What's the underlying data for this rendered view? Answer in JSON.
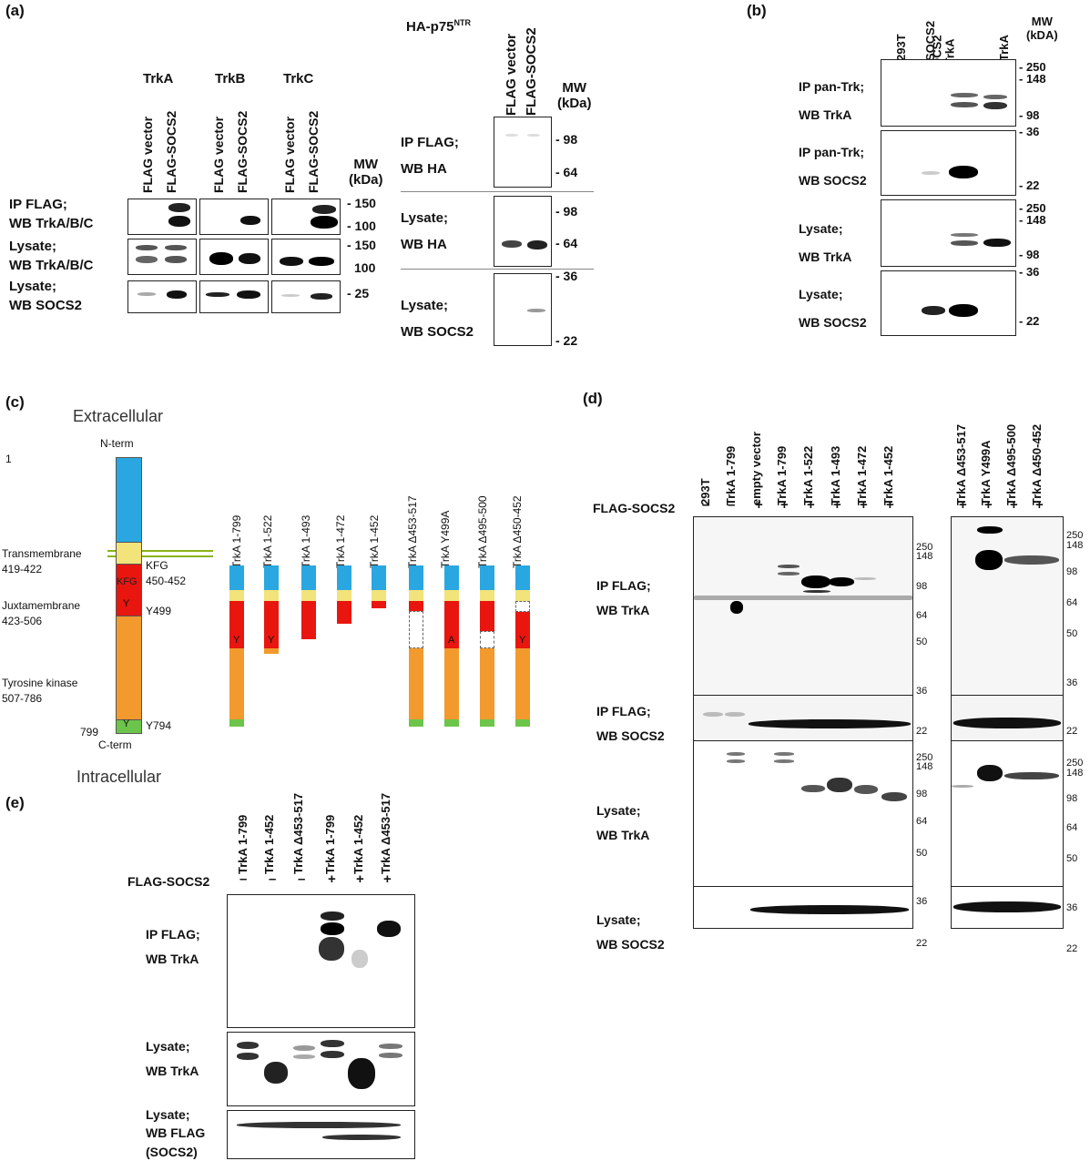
{
  "panels": {
    "a": "(a)",
    "b": "(b)",
    "c": "(c)",
    "d": "(d)",
    "e": "(e)"
  },
  "a": {
    "receptors": [
      "TrkA",
      "TrkB",
      "TrkC"
    ],
    "lanes": [
      "FLAG vector",
      "FLAG-SOCS2"
    ],
    "mw_title": "MW\n(kDa)",
    "rows": [
      {
        "l1": "IP FLAG;",
        "l2": "WB TrkA/B/C",
        "mw": [
          "- 150",
          "- 100"
        ]
      },
      {
        "l1": "Lysate;",
        "l2": "WB TrkA/B/C",
        "mw": [
          "- 150",
          "100"
        ]
      },
      {
        "l1": "Lysate;",
        "l2": "WB SOCS2",
        "mw": [
          "- 25"
        ]
      }
    ],
    "p75_title": "HA-p75",
    "p75_sup": "NTR",
    "p75_lanes": [
      "FLAG vector",
      "FLAG-SOCS2"
    ],
    "p75_mw_title": "MW\n(kDa)",
    "p75_rows": [
      {
        "l1": "IP FLAG;",
        "l2": "WB HA",
        "mw": [
          "- 98",
          "- 64"
        ]
      },
      {
        "l1": "Lysate;",
        "l2": "WB HA",
        "mw": [
          "- 98",
          "- 64"
        ]
      },
      {
        "l1": "Lysate;",
        "l2": "WB SOCS2",
        "mw": [
          "- 36",
          "- 22"
        ]
      }
    ]
  },
  "b": {
    "lanes": [
      "293T",
      "SOCS2",
      "SOCS2\n+ TrkA",
      "TrkA"
    ],
    "mw_title": "MW\n(kDA)",
    "rows": [
      {
        "l1": "IP pan-Trk;",
        "l2": "WB TrkA",
        "mw": [
          "- 250",
          "- 148",
          "- 98"
        ]
      },
      {
        "l1": "IP pan-Trk;",
        "l2": "WB SOCS2",
        "mw": [
          "- 36",
          "- 22"
        ]
      },
      {
        "l1": "Lysate;",
        "l2": "WB TrkA",
        "mw": [
          "- 250",
          "- 148",
          "- 98"
        ]
      },
      {
        "l1": "Lysate;",
        "l2": "WB SOCS2",
        "mw": [
          "- 36",
          "- 22"
        ]
      }
    ]
  },
  "c": {
    "extracellular": "Extracellular",
    "intracellular": "Intracellular",
    "nterm": "N-term",
    "cterm": "C-term",
    "pos1": "1",
    "pos799": "799",
    "tm": "Transmembrane",
    "tm_range": "419-422",
    "jm": "Juxtamembrane",
    "jm_range": "423-506",
    "tk": "Tyrosine kinase",
    "tk_range": "507-786",
    "kfg": "KFG",
    "kfg_range": "450-452",
    "kfg_inner": "KFG",
    "y499": "Y499",
    "y794": "Y794",
    "y": "Y",
    "a": "A",
    "constructs": [
      "TrkA 1-799",
      "TrkA 1-522",
      "TrkA 1-493",
      "TrkA 1-472",
      "TrkA 1-452",
      "TrkA Δ453-517",
      "TrkA Y499A",
      "TrkA Δ495-500",
      "TrkA Δ450-452"
    ]
  },
  "d": {
    "lanes_left": [
      "293T",
      "TrkA 1-799",
      "empty vector",
      "TrkA 1-799",
      "TrkA 1-522",
      "TrkA 1-493",
      "TrkA 1-472",
      "TrkA 1-452"
    ],
    "lanes_right": [
      "TrkA Δ453-517",
      "TrkA Y499A",
      "TrkA Δ495-500",
      "TrkA Δ450-452"
    ],
    "flag_label": "FLAG-SOCS2",
    "signs_left": [
      "–",
      "–",
      "+",
      "+",
      "+",
      "+",
      "+",
      "+"
    ],
    "signs_right": [
      "+",
      "+",
      "+",
      "+"
    ],
    "rows": [
      {
        "l1": "IP FLAG;",
        "l2": "WB TrkA",
        "mw": [
          "250",
          "148",
          "98",
          "64",
          "50"
        ]
      },
      {
        "l1": "IP FLAG;",
        "l2": "WB SOCS2",
        "mw": [
          "36",
          "22"
        ]
      },
      {
        "l1": "Lysate;",
        "l2": "WB TrkA",
        "mw": [
          "250",
          "148",
          "98",
          "64",
          "50"
        ]
      },
      {
        "l1": "Lysate;",
        "l2": "WB SOCS2",
        "mw": [
          "36",
          "22"
        ]
      }
    ]
  },
  "e": {
    "lanes": [
      "TrkA 1-799",
      "TrkA 1-452",
      "TrkA Δ453-517",
      "TrkA 1-799",
      "TrkA 1-452",
      "TrkA Δ453-517"
    ],
    "flag_label": "FLAG-SOCS2",
    "signs": [
      "–",
      "–",
      "–",
      "+",
      "+",
      "+"
    ],
    "rows": [
      {
        "l1": "IP FLAG;",
        "l2": "WB TrkA"
      },
      {
        "l1": "Lysate;",
        "l2": "WB TrkA"
      },
      {
        "l1": "Lysate;",
        "l2": "WB FLAG",
        "l3": "(SOCS2)"
      }
    ]
  }
}
